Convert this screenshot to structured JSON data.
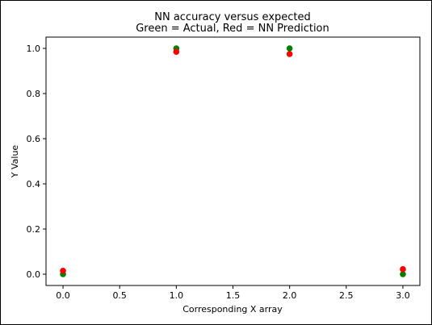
{
  "chart_data": {
    "type": "scatter",
    "title": "NN accuracy versus expected",
    "subtitle": "Green = Actual, Red = NN Prediction",
    "xlabel": "Corresponding X array",
    "ylabel": "Y Value",
    "xlim": [
      -0.15,
      3.15
    ],
    "ylim": [
      -0.05,
      1.05
    ],
    "xticks": [
      0.0,
      0.5,
      1.0,
      1.5,
      2.0,
      2.5,
      3.0
    ],
    "xtick_labels": [
      "0.0",
      "0.5",
      "1.0",
      "1.5",
      "2.0",
      "2.5",
      "3.0"
    ],
    "yticks": [
      0.0,
      0.2,
      0.4,
      0.6,
      0.8,
      1.0
    ],
    "ytick_labels": [
      "0.0",
      "0.2",
      "0.4",
      "0.6",
      "0.8",
      "1.0"
    ],
    "grid": false,
    "series": [
      {
        "color": "#008000",
        "x": [
          0,
          1,
          2,
          3
        ],
        "y": [
          0.0,
          1.0,
          1.0,
          0.0
        ]
      },
      {
        "color": "#ff0000",
        "x": [
          0,
          1,
          2,
          3
        ],
        "y": [
          0.015,
          0.985,
          0.975,
          0.022
        ]
      }
    ]
  }
}
